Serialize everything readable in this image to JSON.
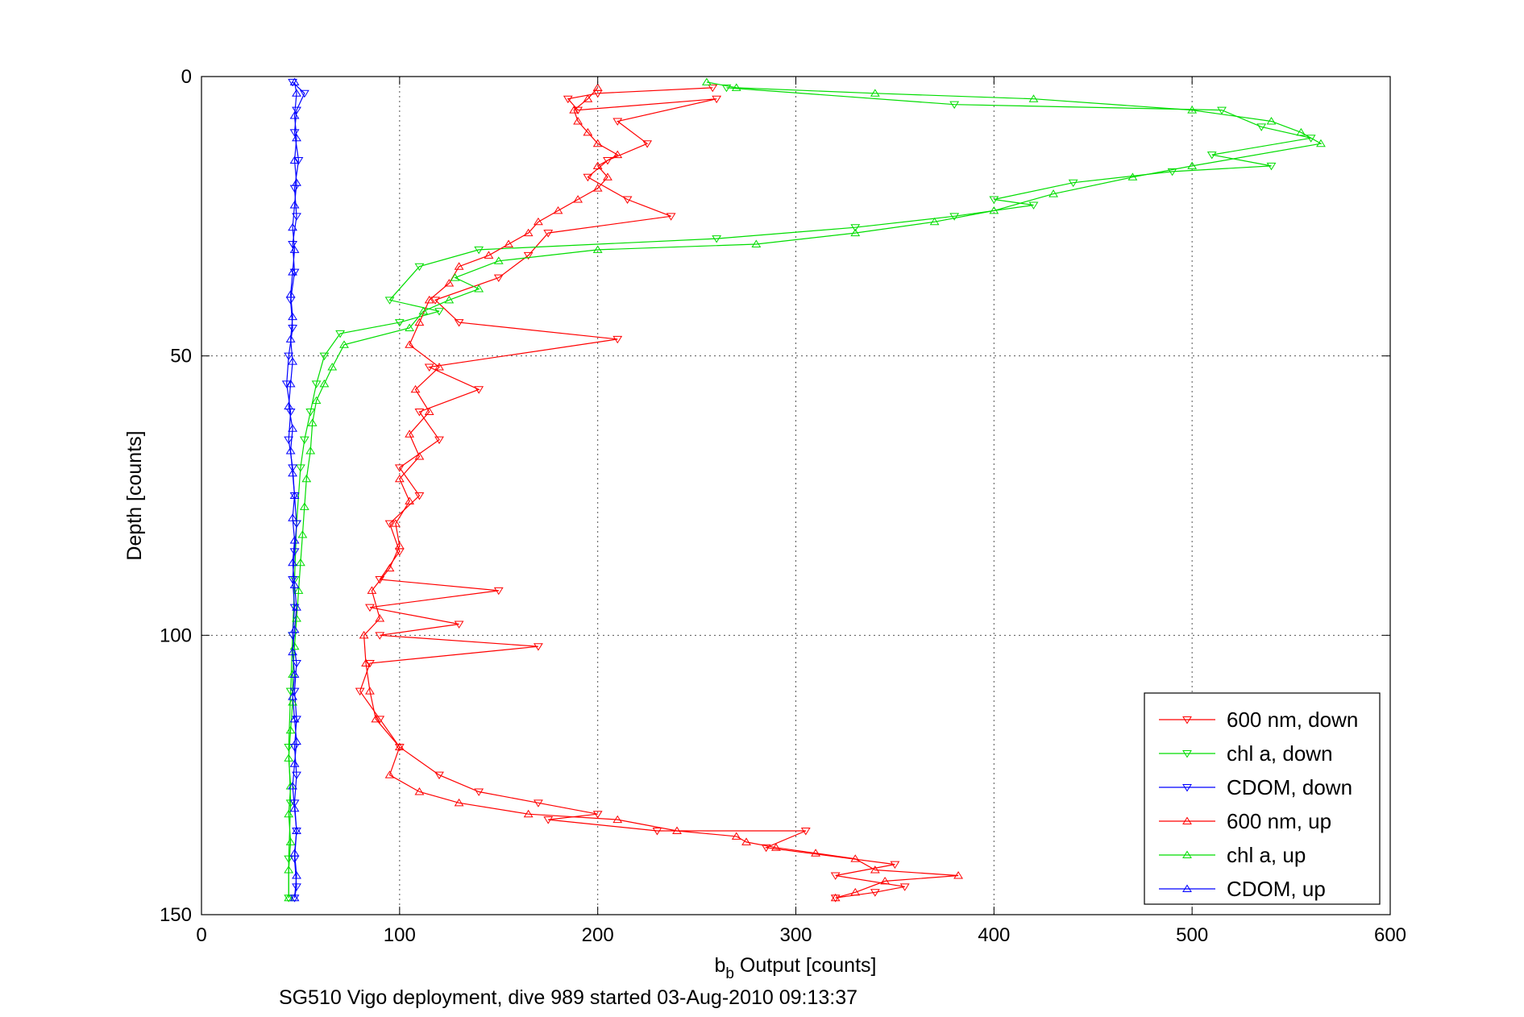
{
  "chart_data": {
    "type": "line",
    "xlabel_main": "b",
    "xlabel_sub": "b",
    "xlabel_rest": " Output [counts]",
    "ylabel": "Depth [counts]",
    "caption": "SG510 Vigo deployment, dive 989 started 03-Aug-2010 09:13:37",
    "xlim": [
      0,
      600
    ],
    "ylim": [
      0,
      150
    ],
    "y_reversed": true,
    "xticks": [
      "0",
      "100",
      "200",
      "300",
      "400",
      "500",
      "600"
    ],
    "yticks": [
      "0",
      "50",
      "100",
      "150"
    ],
    "grid": true,
    "legend_position": "bottom-right",
    "series": [
      {
        "name": "600 nm, down",
        "color": "#ff0000",
        "marker": "triangle-down",
        "points": [
          [
            258,
            2
          ],
          [
            200,
            3
          ],
          [
            185,
            4
          ],
          [
            190,
            6
          ],
          [
            260,
            4
          ],
          [
            210,
            8
          ],
          [
            225,
            12
          ],
          [
            205,
            15
          ],
          [
            195,
            18
          ],
          [
            215,
            22
          ],
          [
            237,
            25
          ],
          [
            175,
            28
          ],
          [
            165,
            32
          ],
          [
            150,
            36
          ],
          [
            118,
            40
          ],
          [
            130,
            44
          ],
          [
            210,
            47
          ],
          [
            115,
            52
          ],
          [
            140,
            56
          ],
          [
            110,
            60
          ],
          [
            120,
            65
          ],
          [
            100,
            70
          ],
          [
            110,
            75
          ],
          [
            95,
            80
          ],
          [
            100,
            85
          ],
          [
            90,
            90
          ],
          [
            150,
            92
          ],
          [
            85,
            95
          ],
          [
            130,
            98
          ],
          [
            90,
            100
          ],
          [
            170,
            102
          ],
          [
            85,
            105
          ],
          [
            80,
            110
          ],
          [
            90,
            115
          ],
          [
            100,
            120
          ],
          [
            120,
            125
          ],
          [
            140,
            128
          ],
          [
            170,
            130
          ],
          [
            200,
            132
          ],
          [
            175,
            133
          ],
          [
            230,
            135
          ],
          [
            305,
            135
          ],
          [
            285,
            138
          ],
          [
            350,
            141
          ],
          [
            320,
            143
          ],
          [
            355,
            145
          ],
          [
            340,
            146
          ],
          [
            320,
            147
          ]
        ]
      },
      {
        "name": "chl a, down",
        "color": "#00dd00",
        "marker": "triangle-down",
        "points": [
          [
            265,
            2
          ],
          [
            380,
            5
          ],
          [
            515,
            6
          ],
          [
            535,
            9
          ],
          [
            560,
            11
          ],
          [
            510,
            14
          ],
          [
            540,
            16
          ],
          [
            490,
            17
          ],
          [
            440,
            19
          ],
          [
            400,
            22
          ],
          [
            420,
            23
          ],
          [
            380,
            25
          ],
          [
            330,
            27
          ],
          [
            260,
            29
          ],
          [
            140,
            31
          ],
          [
            110,
            34
          ],
          [
            95,
            40
          ],
          [
            120,
            42
          ],
          [
            100,
            44
          ],
          [
            70,
            46
          ],
          [
            62,
            50
          ],
          [
            58,
            55
          ],
          [
            55,
            60
          ],
          [
            52,
            65
          ],
          [
            50,
            70
          ],
          [
            48,
            80
          ],
          [
            47,
            90
          ],
          [
            46,
            100
          ],
          [
            45,
            110
          ],
          [
            44,
            120
          ],
          [
            45,
            130
          ],
          [
            44,
            140
          ],
          [
            44,
            147
          ]
        ]
      },
      {
        "name": "CDOM, down",
        "color": "#0000ff",
        "marker": "triangle-down",
        "points": [
          [
            46,
            1
          ],
          [
            52,
            3
          ],
          [
            48,
            6
          ],
          [
            47,
            10
          ],
          [
            49,
            15
          ],
          [
            47,
            20
          ],
          [
            48,
            25
          ],
          [
            46,
            30
          ],
          [
            47,
            35
          ],
          [
            45,
            40
          ],
          [
            46,
            45
          ],
          [
            44,
            50
          ],
          [
            43,
            55
          ],
          [
            45,
            60
          ],
          [
            44,
            65
          ],
          [
            46,
            70
          ],
          [
            47,
            75
          ],
          [
            48,
            80
          ],
          [
            47,
            85
          ],
          [
            46,
            90
          ],
          [
            47,
            95
          ],
          [
            46,
            100
          ],
          [
            48,
            105
          ],
          [
            47,
            110
          ],
          [
            48,
            115
          ],
          [
            47,
            120
          ],
          [
            48,
            125
          ],
          [
            47,
            130
          ],
          [
            48,
            135
          ],
          [
            47,
            140
          ],
          [
            48,
            145
          ],
          [
            47,
            147
          ]
        ]
      },
      {
        "name": "600 nm, up",
        "color": "#ff0000",
        "marker": "triangle-up",
        "points": [
          [
            320,
            147
          ],
          [
            330,
            146
          ],
          [
            345,
            144
          ],
          [
            382,
            143
          ],
          [
            340,
            142
          ],
          [
            330,
            140
          ],
          [
            310,
            139
          ],
          [
            290,
            138
          ],
          [
            275,
            137
          ],
          [
            270,
            136
          ],
          [
            240,
            135
          ],
          [
            210,
            133
          ],
          [
            165,
            132
          ],
          [
            130,
            130
          ],
          [
            110,
            128
          ],
          [
            95,
            125
          ],
          [
            100,
            120
          ],
          [
            88,
            115
          ],
          [
            85,
            110
          ],
          [
            83,
            105
          ],
          [
            82,
            100
          ],
          [
            90,
            97
          ],
          [
            86,
            92
          ],
          [
            95,
            88
          ],
          [
            100,
            84
          ],
          [
            98,
            80
          ],
          [
            105,
            76
          ],
          [
            100,
            72
          ],
          [
            110,
            68
          ],
          [
            105,
            64
          ],
          [
            115,
            60
          ],
          [
            108,
            56
          ],
          [
            120,
            52
          ],
          [
            105,
            48
          ],
          [
            110,
            44
          ],
          [
            115,
            40
          ],
          [
            125,
            37
          ],
          [
            130,
            34
          ],
          [
            145,
            32
          ],
          [
            155,
            30
          ],
          [
            165,
            28
          ],
          [
            170,
            26
          ],
          [
            180,
            24
          ],
          [
            190,
            22
          ],
          [
            200,
            20
          ],
          [
            205,
            18
          ],
          [
            200,
            16
          ],
          [
            210,
            14
          ],
          [
            200,
            12
          ],
          [
            195,
            10
          ],
          [
            190,
            8
          ],
          [
            188,
            6
          ],
          [
            195,
            4
          ],
          [
            200,
            2
          ]
        ]
      },
      {
        "name": "chl a, up",
        "color": "#00dd00",
        "marker": "triangle-up",
        "points": [
          [
            44,
            147
          ],
          [
            44,
            142
          ],
          [
            45,
            137
          ],
          [
            44,
            132
          ],
          [
            45,
            127
          ],
          [
            44,
            122
          ],
          [
            45,
            117
          ],
          [
            46,
            112
          ],
          [
            46,
            107
          ],
          [
            47,
            102
          ],
          [
            48,
            97
          ],
          [
            49,
            92
          ],
          [
            50,
            87
          ],
          [
            51,
            82
          ],
          [
            52,
            77
          ],
          [
            53,
            72
          ],
          [
            55,
            67
          ],
          [
            56,
            62
          ],
          [
            58,
            58
          ],
          [
            62,
            55
          ],
          [
            66,
            52
          ],
          [
            72,
            48
          ],
          [
            105,
            45
          ],
          [
            112,
            42
          ],
          [
            125,
            40
          ],
          [
            140,
            38
          ],
          [
            128,
            36
          ],
          [
            150,
            33
          ],
          [
            200,
            31
          ],
          [
            280,
            30
          ],
          [
            330,
            28
          ],
          [
            370,
            26
          ],
          [
            400,
            24
          ],
          [
            430,
            21
          ],
          [
            470,
            18
          ],
          [
            500,
            16
          ],
          [
            565,
            12
          ],
          [
            555,
            10
          ],
          [
            540,
            8
          ],
          [
            500,
            6
          ],
          [
            420,
            4
          ],
          [
            340,
            3
          ],
          [
            270,
            2
          ],
          [
            255,
            1
          ]
        ]
      },
      {
        "name": "CDOM, up",
        "color": "#0000ff",
        "marker": "triangle-up",
        "points": [
          [
            47,
            147
          ],
          [
            48,
            143
          ],
          [
            47,
            139
          ],
          [
            48,
            135
          ],
          [
            47,
            131
          ],
          [
            46,
            127
          ],
          [
            47,
            123
          ],
          [
            48,
            119
          ],
          [
            47,
            115
          ],
          [
            46,
            111
          ],
          [
            47,
            107
          ],
          [
            46,
            103
          ],
          [
            47,
            99
          ],
          [
            48,
            95
          ],
          [
            47,
            91
          ],
          [
            46,
            87
          ],
          [
            47,
            83
          ],
          [
            46,
            79
          ],
          [
            47,
            75
          ],
          [
            46,
            71
          ],
          [
            45,
            67
          ],
          [
            46,
            63
          ],
          [
            44,
            59
          ],
          [
            45,
            55
          ],
          [
            46,
            51
          ],
          [
            45,
            47
          ],
          [
            46,
            43
          ],
          [
            45,
            39
          ],
          [
            46,
            35
          ],
          [
            47,
            31
          ],
          [
            46,
            27
          ],
          [
            47,
            23
          ],
          [
            48,
            19
          ],
          [
            47,
            15
          ],
          [
            48,
            11
          ],
          [
            47,
            7
          ],
          [
            48,
            3
          ],
          [
            47,
            1
          ]
        ]
      }
    ]
  }
}
